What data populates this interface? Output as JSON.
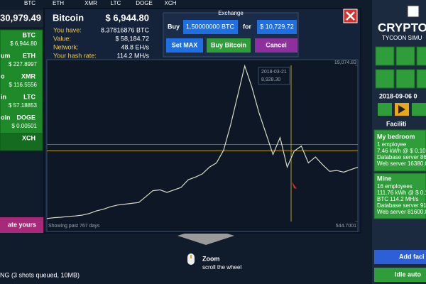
{
  "top_bar": {
    "balance": "30,979.49",
    "coins": [
      "BTC",
      "ETH",
      "XMR",
      "LTC",
      "DOGE",
      "XCH"
    ]
  },
  "coin_list": [
    {
      "symbol": "BTC",
      "price": "$ 6,944.80"
    },
    {
      "name": "um",
      "symbol": "ETH",
      "price": "$ 227.8997"
    },
    {
      "name": "o",
      "symbol": "XMR",
      "price": "$ 116.5556"
    },
    {
      "name": "in",
      "symbol": "LTC",
      "price": "$ 57.18853"
    },
    {
      "name": "oin",
      "symbol": "DOGE",
      "price": "$ 0.00501"
    },
    {
      "symbol": "XCH"
    }
  ],
  "rate_button": "ate yours",
  "dialog": {
    "title": "Bitcoin",
    "price": "$ 6,944.80",
    "stats": [
      {
        "label": "You have:",
        "value": "8.37816876 BTC"
      },
      {
        "label": "Value:",
        "value": "$ 58,184.72"
      },
      {
        "label": "Network:",
        "value": "48.8 EH/s"
      },
      {
        "label": "Your hash rate:",
        "value": "114.2 MH/s"
      }
    ],
    "exchange": {
      "title": "Exchange",
      "buy_label": "Buy",
      "amount": "1.50000000 BTC",
      "for_label": "for",
      "cost": "$ 10,729.72",
      "set_max": "Set MAX",
      "buy_button": "Buy Bitcoin",
      "cancel": "Cancel"
    }
  },
  "chart_data": {
    "type": "line",
    "color": "#d9dcc4",
    "values": [
      900,
      1000,
      1050,
      1150,
      1200,
      1300,
      1500,
      1800,
      2000,
      2300,
      2500,
      2600,
      2700,
      2800,
      3500,
      4200,
      4300,
      4000,
      4300,
      4600,
      5500,
      5800,
      6200,
      7000,
      7500,
      9000,
      12000,
      15500,
      19000,
      16500,
      13500,
      11000,
      8500,
      10500,
      7000,
      8900,
      9500,
      7500,
      8200,
      7300,
      6500,
      6600,
      6400,
      6700,
      7000
    ],
    "ylim": [
      544.7001,
      19074.83
    ],
    "yticks": [
      544.7001,
      {
        "value": 19074.83,
        "label": "19,074.83"
      }
    ],
    "caption": "Showing past 767 days",
    "tooltip": {
      "date": "2018-03-21",
      "value": 8928.3,
      "label": "8,928.30"
    }
  },
  "hint": {
    "title": "Zoom",
    "text": "scroll the wheel"
  },
  "status": "NG (3 shots queued, 10MB)",
  "side_panel": {
    "logo": "CRYPTO",
    "subtitle": "TYCOON SIMU",
    "date": "2018-09-06 0",
    "facilities_title": "Faciliti",
    "facilities": [
      {
        "name": "My bedroom",
        "lines": [
          "1 employee",
          "7.46 kWh @ $ 0.10",
          "Database server 864",
          "Web server 16380.0 h"
        ]
      },
      {
        "name": "Mine",
        "lines": [
          "16 employees",
          "111.76 kWh @ $ 0.12",
          "BTC 114.2 MH/s",
          "Database server 912",
          "Web server 81600.0 h"
        ]
      }
    ],
    "add_facility": "Add faci",
    "idle": "Idle auto"
  }
}
